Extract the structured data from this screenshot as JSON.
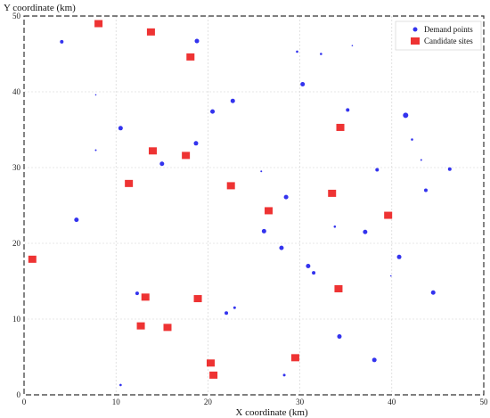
{
  "chart_data": {
    "type": "scatter",
    "xlabel": "X coordinate (km)",
    "ylabel": "Y coordinate (km)",
    "xlim": [
      0,
      50
    ],
    "ylim": [
      0,
      50
    ],
    "xticks": [
      "0",
      "10",
      "20",
      "30",
      "40",
      "50"
    ],
    "yticks": [
      "0",
      "10",
      "20",
      "30",
      "40",
      "50"
    ],
    "grid": true,
    "legend_position": "top-right",
    "legend": [
      {
        "label": "Demand points",
        "marker": "circle",
        "color": "#3333ee"
      },
      {
        "label": "Candidate sites",
        "marker": "square",
        "color": "#ee3333"
      }
    ],
    "series": [
      {
        "name": "Demand points",
        "color": "#3333ee",
        "points": [
          {
            "x": 4.1,
            "y": 46.6,
            "r": 2.0
          },
          {
            "x": 18.8,
            "y": 46.7,
            "r": 2.5
          },
          {
            "x": 29.7,
            "y": 45.3,
            "r": 1.3
          },
          {
            "x": 32.3,
            "y": 45.0,
            "r": 1.3
          },
          {
            "x": 35.7,
            "y": 46.1,
            "r": 0.8
          },
          {
            "x": 30.3,
            "y": 41.0,
            "r": 2.5
          },
          {
            "x": 7.8,
            "y": 39.6,
            "r": 0.8
          },
          {
            "x": 22.7,
            "y": 38.8,
            "r": 2.5
          },
          {
            "x": 20.5,
            "y": 37.4,
            "r": 2.5
          },
          {
            "x": 35.2,
            "y": 37.6,
            "r": 2.0
          },
          {
            "x": 41.5,
            "y": 36.9,
            "r": 3.0
          },
          {
            "x": 10.5,
            "y": 35.2,
            "r": 2.5
          },
          {
            "x": 42.2,
            "y": 33.7,
            "r": 1.3
          },
          {
            "x": 18.7,
            "y": 33.2,
            "r": 2.5
          },
          {
            "x": 7.8,
            "y": 32.3,
            "r": 1.0
          },
          {
            "x": 15.0,
            "y": 30.5,
            "r": 2.5
          },
          {
            "x": 43.2,
            "y": 31.0,
            "r": 1.0
          },
          {
            "x": 38.4,
            "y": 29.7,
            "r": 2.0
          },
          {
            "x": 46.3,
            "y": 29.8,
            "r": 2.0
          },
          {
            "x": 25.8,
            "y": 29.5,
            "r": 1.0
          },
          {
            "x": 43.7,
            "y": 27.0,
            "r": 2.0
          },
          {
            "x": 28.5,
            "y": 26.1,
            "r": 2.5
          },
          {
            "x": 5.7,
            "y": 23.1,
            "r": 2.5
          },
          {
            "x": 33.8,
            "y": 22.2,
            "r": 1.3
          },
          {
            "x": 26.1,
            "y": 21.6,
            "r": 2.5
          },
          {
            "x": 37.1,
            "y": 21.5,
            "r": 2.5
          },
          {
            "x": 28.0,
            "y": 19.4,
            "r": 2.5
          },
          {
            "x": 40.8,
            "y": 18.2,
            "r": 2.5
          },
          {
            "x": 30.9,
            "y": 17.0,
            "r": 2.5
          },
          {
            "x": 31.5,
            "y": 16.1,
            "r": 2.0
          },
          {
            "x": 39.9,
            "y": 15.7,
            "r": 0.8
          },
          {
            "x": 12.3,
            "y": 13.4,
            "r": 2.0
          },
          {
            "x": 44.5,
            "y": 13.5,
            "r": 2.5
          },
          {
            "x": 22.9,
            "y": 11.5,
            "r": 1.5
          },
          {
            "x": 22.0,
            "y": 10.8,
            "r": 2.0
          },
          {
            "x": 34.3,
            "y": 7.7,
            "r": 2.5
          },
          {
            "x": 38.1,
            "y": 4.6,
            "r": 2.5
          },
          {
            "x": 28.3,
            "y": 2.6,
            "r": 1.5
          },
          {
            "x": 10.5,
            "y": 1.3,
            "r": 1.3
          }
        ]
      },
      {
        "name": "Candidate sites",
        "color": "#ee3333",
        "points": [
          {
            "x": 8.1,
            "y": 49.0
          },
          {
            "x": 13.8,
            "y": 47.9
          },
          {
            "x": 18.1,
            "y": 44.6
          },
          {
            "x": 34.4,
            "y": 35.3
          },
          {
            "x": 14.0,
            "y": 32.2
          },
          {
            "x": 17.6,
            "y": 31.6
          },
          {
            "x": 11.4,
            "y": 27.9
          },
          {
            "x": 22.5,
            "y": 27.6
          },
          {
            "x": 33.5,
            "y": 26.6
          },
          {
            "x": 26.6,
            "y": 24.3
          },
          {
            "x": 39.6,
            "y": 23.7
          },
          {
            "x": 0.9,
            "y": 17.9
          },
          {
            "x": 34.2,
            "y": 14.0
          },
          {
            "x": 13.2,
            "y": 12.9
          },
          {
            "x": 18.9,
            "y": 12.7
          },
          {
            "x": 12.7,
            "y": 9.1
          },
          {
            "x": 15.6,
            "y": 8.9
          },
          {
            "x": 29.5,
            "y": 4.9
          },
          {
            "x": 20.3,
            "y": 4.2
          },
          {
            "x": 20.6,
            "y": 2.6
          }
        ]
      }
    ]
  }
}
